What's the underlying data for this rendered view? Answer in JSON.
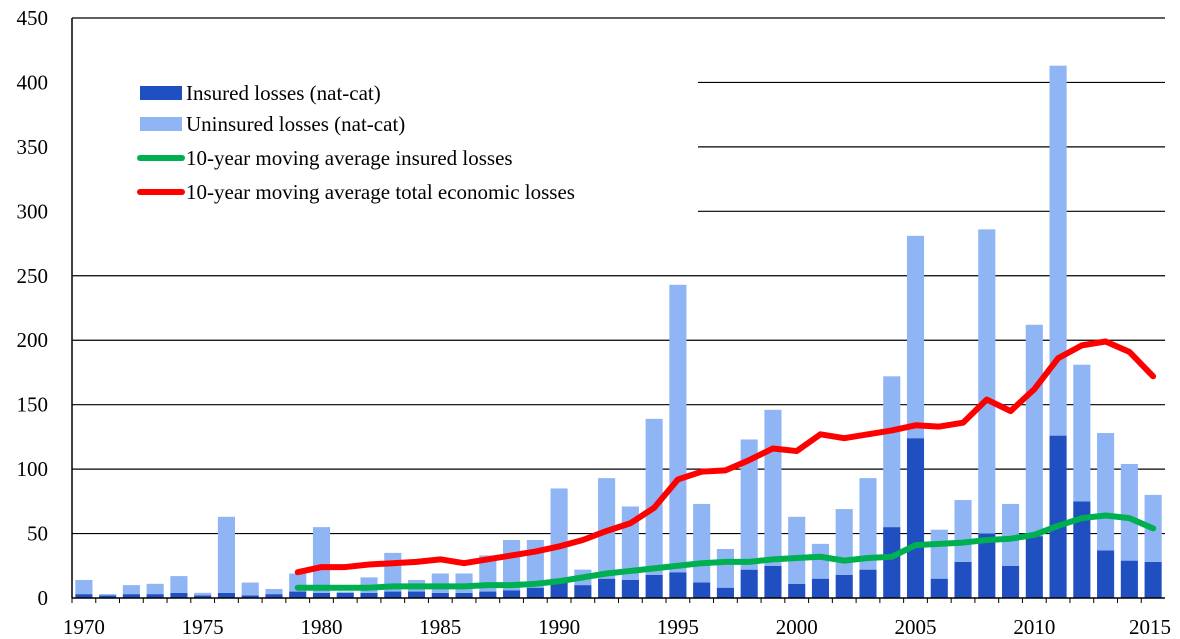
{
  "chart_data": {
    "type": "bar",
    "stacked": true,
    "x": [
      1970,
      1971,
      1972,
      1973,
      1974,
      1975,
      1976,
      1977,
      1978,
      1979,
      1980,
      1981,
      1982,
      1983,
      1984,
      1985,
      1986,
      1987,
      1988,
      1989,
      1990,
      1991,
      1992,
      1993,
      1994,
      1995,
      1996,
      1997,
      1998,
      1999,
      2000,
      2001,
      2002,
      2003,
      2004,
      2005,
      2006,
      2007,
      2008,
      2009,
      2010,
      2011,
      2012,
      2013,
      2014,
      2015
    ],
    "series": [
      {
        "name": "Insured losses (nat-cat)",
        "color": "#1f4fc1",
        "kind": "bar",
        "values": [
          3,
          2,
          3,
          3,
          4,
          2,
          4,
          2,
          3,
          5,
          4,
          4,
          4,
          5,
          5,
          4,
          4,
          5,
          6,
          8,
          15,
          10,
          15,
          14,
          18,
          20,
          12,
          8,
          22,
          25,
          11,
          15,
          18,
          22,
          55,
          124,
          15,
          28,
          50,
          25,
          48,
          126,
          75,
          37,
          29,
          28
        ]
      },
      {
        "name": "Uninsured losses (nat-cat)",
        "color": "#8fb5f5",
        "kind": "bar",
        "values": [
          11,
          1,
          7,
          8,
          13,
          2,
          59,
          10,
          4,
          14,
          51,
          1,
          12,
          30,
          9,
          15,
          15,
          28,
          39,
          37,
          70,
          12,
          78,
          57,
          121,
          223,
          61,
          30,
          101,
          121,
          52,
          27,
          51,
          71,
          117,
          157,
          38,
          48,
          236,
          48,
          164,
          287,
          106,
          91,
          75,
          52
        ]
      },
      {
        "name": "10-year moving average insured losses",
        "color": "#00b050",
        "kind": "line",
        "x": [
          1979,
          1980,
          1981,
          1982,
          1983,
          1984,
          1985,
          1986,
          1987,
          1988,
          1989,
          1990,
          1991,
          1992,
          1993,
          1994,
          1995,
          1996,
          1997,
          1998,
          1999,
          2000,
          2001,
          2002,
          2003,
          2004,
          2005,
          2006,
          2007,
          2008,
          2009,
          2010,
          2011,
          2012,
          2013,
          2014,
          2015
        ],
        "values": [
          8,
          8,
          8,
          8,
          9,
          9,
          9,
          9,
          10,
          10,
          11,
          13,
          16,
          19,
          21,
          23,
          25,
          27,
          28,
          28,
          30,
          31,
          32,
          29,
          31,
          32,
          41,
          42,
          43,
          45,
          46,
          49,
          56,
          62,
          64,
          62,
          54
        ]
      },
      {
        "name": "10-year moving average total economic losses",
        "color": "#ff0000",
        "kind": "line",
        "x": [
          1979,
          1980,
          1981,
          1982,
          1983,
          1984,
          1985,
          1986,
          1987,
          1988,
          1989,
          1990,
          1991,
          1992,
          1993,
          1994,
          1995,
          1996,
          1997,
          1998,
          1999,
          2000,
          2001,
          2002,
          2003,
          2004,
          2005,
          2006,
          2007,
          2008,
          2009,
          2010,
          2011,
          2012,
          2013,
          2014,
          2015
        ],
        "values": [
          20,
          24,
          24,
          26,
          27,
          28,
          30,
          27,
          30,
          33,
          36,
          40,
          45,
          52,
          58,
          70,
          92,
          98,
          99,
          107,
          116,
          114,
          127,
          124,
          127,
          130,
          134,
          133,
          136,
          154,
          145,
          162,
          186,
          196,
          199,
          191,
          172
        ]
      }
    ],
    "title": "",
    "xlabel": "",
    "ylabel": "",
    "ylim": [
      0,
      450
    ],
    "yticks": [
      0,
      50,
      100,
      150,
      200,
      250,
      300,
      350,
      400,
      450
    ],
    "xticks": [
      1970,
      1975,
      1980,
      1985,
      1990,
      1995,
      2000,
      2005,
      2010,
      2015
    ],
    "grid": true,
    "legend_position": "top-left"
  }
}
